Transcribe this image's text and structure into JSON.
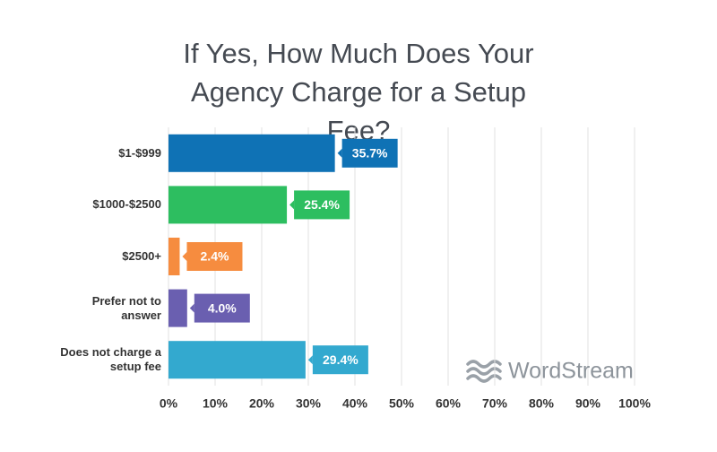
{
  "chart_data": {
    "type": "bar",
    "orientation": "horizontal",
    "title": "If Yes, How Much Does Your Agency Charge for a Setup Fee?",
    "categories": [
      "$1-$999",
      "$1000-$2500",
      "$2500+",
      "Prefer not to answer",
      "Does not charge a setup fee"
    ],
    "values": [
      35.7,
      25.4,
      2.4,
      4.0,
      29.4
    ],
    "value_labels": [
      "35.7%",
      "25.4%",
      "2.4%",
      "4.0%",
      "29.4%"
    ],
    "colors": [
      "#0f72b5",
      "#2dbe60",
      "#f68c3f",
      "#6a5fb0",
      "#33a9cf"
    ],
    "xlim": [
      0,
      100
    ],
    "xticks": [
      {
        "value": 0,
        "label": "0%"
      },
      {
        "value": 10,
        "label": "10%"
      },
      {
        "value": 20,
        "label": "20%"
      },
      {
        "value": 30,
        "label": "30%"
      },
      {
        "value": 40,
        "label": "40%"
      },
      {
        "value": 50,
        "label": "50%"
      },
      {
        "value": 60,
        "label": "60%"
      },
      {
        "value": 70,
        "label": "70%"
      },
      {
        "value": 80,
        "label": "80%"
      },
      {
        "value": 90,
        "label": "90%"
      },
      {
        "value": 100,
        "label": "100%"
      }
    ],
    "grid": true,
    "watermark": "WordStream"
  }
}
